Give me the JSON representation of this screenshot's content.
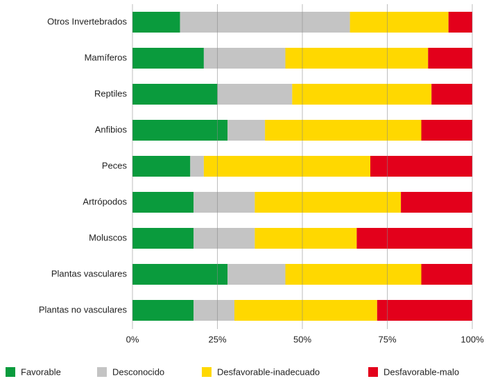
{
  "chart_data": {
    "type": "stacked_barh",
    "categories": [
      "Otros Invertebrados",
      "Mamíferos",
      "Reptiles",
      "Anfibios",
      "Peces",
      "Artrópodos",
      "Moluscos",
      "Plantas vasculares",
      "Plantas no vasculares"
    ],
    "series": [
      {
        "name": "Favorable",
        "color": "#0a9b3d",
        "values": [
          14,
          21,
          25,
          28,
          17,
          18,
          18,
          28,
          18
        ]
      },
      {
        "name": "Desconocido",
        "color": "#c4c4c4",
        "values": [
          50,
          24,
          22,
          11,
          4,
          18,
          18,
          17,
          12
        ]
      },
      {
        "name": "Desfavorable-inadecuado",
        "color": "#ffd800",
        "values": [
          29,
          42,
          41,
          46,
          49,
          43,
          30,
          40,
          42
        ]
      },
      {
        "name": "Desfavorable-malo",
        "color": "#e3001b",
        "values": [
          7,
          13,
          12,
          15,
          30,
          21,
          34,
          15,
          28
        ]
      }
    ],
    "xlim": [
      0,
      100
    ],
    "xticks": [
      {
        "value": 0,
        "label": "0%"
      },
      {
        "value": 25,
        "label": "25%"
      },
      {
        "value": 50,
        "label": "50%"
      },
      {
        "value": 75,
        "label": "75%"
      },
      {
        "value": 100,
        "label": "100%"
      }
    ],
    "grid": true
  }
}
